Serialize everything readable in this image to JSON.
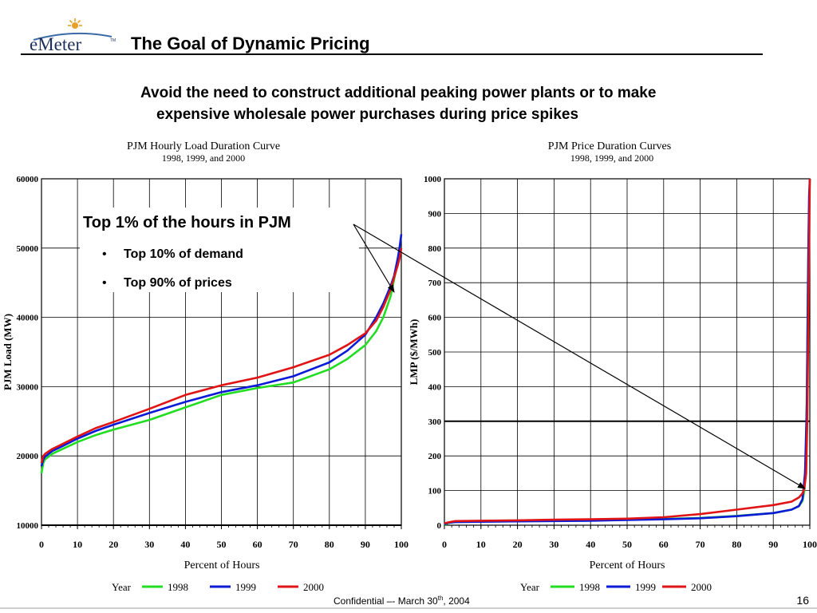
{
  "slide": {
    "logo": "eMeter",
    "logo_mark": "TM",
    "title": "The Goal of Dynamic Pricing",
    "subtitle_line1": "Avoid the need to construct additional peaking power plants or to make",
    "subtitle_line2": "expensive wholesale power purchases during price spikes",
    "callout_title": "Top 1% of the hours in PJM",
    "callout_bullets": [
      "Top 10% of demand",
      "Top 90% of prices"
    ],
    "bullet_glyph": "•",
    "footer_text": "Confidential –- March 30",
    "footer_sup": "th",
    "footer_year": ", 2004",
    "page_number": "16"
  },
  "colors": {
    "y1998": "#22dd22",
    "y1999": "#0a1ad6",
    "y2000": "#e01414",
    "grid": "#000000"
  },
  "chart_data": [
    {
      "type": "line",
      "title": "PJM Hourly Load Duration Curve",
      "subtitle": "1998, 1999, and 2000",
      "xlabel": "Percent of Hours",
      "ylabel": "PJM Load (MW)",
      "xlim": [
        0,
        100
      ],
      "ylim": [
        10000,
        60000
      ],
      "xticks": [
        0,
        10,
        20,
        30,
        40,
        50,
        60,
        70,
        80,
        90,
        100
      ],
      "yticks": [
        10000,
        20000,
        30000,
        40000,
        50000,
        60000
      ],
      "grid": true,
      "legend_title": "Year",
      "legend_position": "bottom",
      "series": [
        {
          "name": "1998",
          "color_key": "y1998",
          "x": [
            0,
            0.5,
            1,
            3,
            5,
            10,
            15,
            20,
            30,
            40,
            50,
            60,
            70,
            80,
            85,
            90,
            93,
            95,
            97,
            98,
            99,
            100
          ],
          "y": [
            17500,
            19000,
            19500,
            20300,
            20800,
            22000,
            23000,
            23800,
            25200,
            27000,
            28800,
            29800,
            30600,
            32500,
            34000,
            36000,
            38000,
            40000,
            43000,
            45500,
            48000,
            50000
          ]
        },
        {
          "name": "1999",
          "color_key": "y1999",
          "x": [
            0,
            0.5,
            1,
            3,
            5,
            10,
            15,
            20,
            30,
            40,
            50,
            60,
            70,
            80,
            85,
            90,
            93,
            95,
            97,
            98,
            99,
            99.5,
            100
          ],
          "y": [
            18500,
            19500,
            19900,
            20700,
            21200,
            22500,
            23600,
            24500,
            26200,
            27800,
            29200,
            30200,
            31500,
            33500,
            35200,
            37500,
            40000,
            42000,
            44500,
            46000,
            48500,
            50000,
            52000
          ]
        },
        {
          "name": "2000",
          "color_key": "y2000",
          "x": [
            0,
            0.5,
            1,
            3,
            5,
            10,
            15,
            20,
            30,
            40,
            50,
            60,
            70,
            80,
            85,
            90,
            93,
            95,
            97,
            98,
            99,
            99.5,
            100
          ],
          "y": [
            19000,
            20000,
            20300,
            21000,
            21500,
            22800,
            24000,
            24900,
            26800,
            28800,
            30200,
            31300,
            32800,
            34600,
            36000,
            37700,
            39500,
            41500,
            44000,
            45800,
            47500,
            48500,
            50000
          ]
        }
      ]
    },
    {
      "type": "line",
      "title": "PJM Price Duration Curves",
      "subtitle": "1998, 1999, and 2000",
      "xlabel": "Percent of Hours",
      "ylabel": "LMP ($/MWh)",
      "xlim": [
        0,
        100
      ],
      "ylim": [
        0,
        1000
      ],
      "xticks": [
        0,
        10,
        20,
        30,
        40,
        50,
        60,
        70,
        80,
        90,
        100
      ],
      "yticks": [
        0,
        100,
        200,
        300,
        400,
        500,
        600,
        700,
        800,
        900,
        1000
      ],
      "grid": true,
      "legend_title": "Year",
      "legend_position": "bottom",
      "series": [
        {
          "name": "1998",
          "color_key": "y1998",
          "x": [
            0,
            1,
            3,
            10,
            20,
            30,
            40,
            50,
            60,
            70,
            80,
            90,
            95,
            97,
            98,
            98.5,
            99,
            99.3,
            99.6,
            100
          ],
          "y": [
            0,
            6,
            10,
            11,
            12,
            13,
            14,
            16,
            18,
            21,
            27,
            35,
            45,
            55,
            70,
            100,
            220,
            500,
            800,
            1000
          ]
        },
        {
          "name": "1999",
          "color_key": "y1999",
          "x": [
            0,
            1,
            3,
            10,
            20,
            30,
            40,
            50,
            60,
            70,
            80,
            90,
            95,
            97,
            98,
            98.7,
            99.2,
            99.5,
            99.8,
            100
          ],
          "y": [
            2,
            7,
            9,
            10,
            11,
            12,
            13,
            15,
            17,
            20,
            26,
            35,
            45,
            55,
            75,
            150,
            350,
            700,
            950,
            1000
          ]
        },
        {
          "name": "2000",
          "color_key": "y2000",
          "x": [
            0,
            1,
            3,
            10,
            20,
            30,
            40,
            50,
            60,
            70,
            80,
            90,
            95,
            97,
            98,
            98.5,
            99,
            99.3,
            99.6,
            99.8,
            100
          ],
          "y": [
            5,
            8,
            12,
            13,
            14,
            16,
            17,
            19,
            23,
            32,
            45,
            58,
            68,
            80,
            92,
            105,
            150,
            300,
            600,
            800,
            1000
          ]
        }
      ]
    }
  ]
}
